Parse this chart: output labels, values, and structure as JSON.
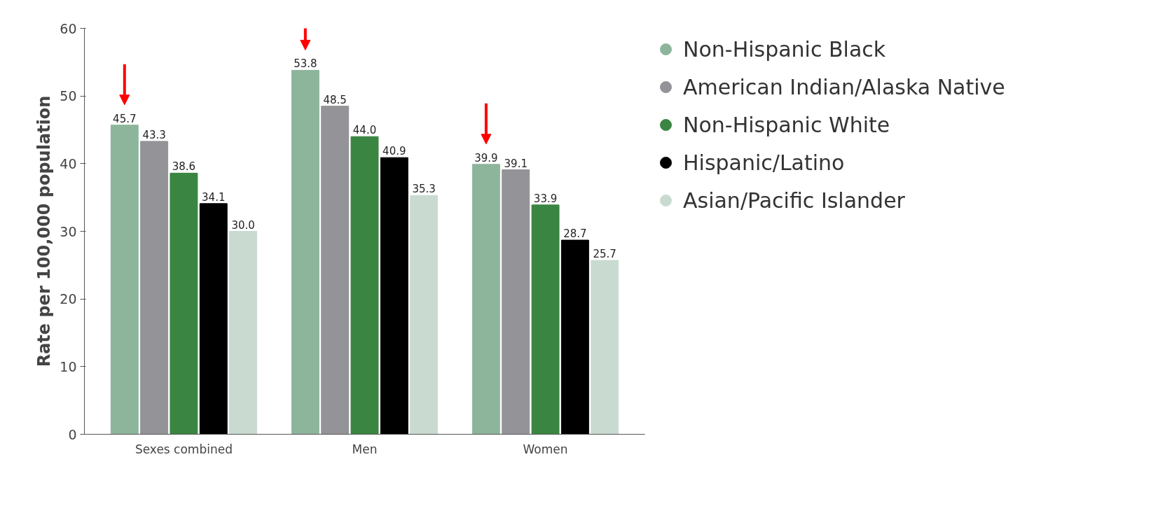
{
  "chart_data": {
    "type": "bar",
    "ylabel": "Rate per 100,000 population",
    "categories": [
      "Sexes combined",
      "Men",
      "Women"
    ],
    "series": [
      {
        "name": "Non-Hispanic Black",
        "color": "#8db59c",
        "values": [
          45.7,
          53.8,
          39.9
        ],
        "value_labels": [
          "45.7",
          "53.8",
          "39.9"
        ]
      },
      {
        "name": "American Indian/Alaska Native",
        "color": "#939398",
        "values": [
          43.3,
          48.5,
          39.1
        ],
        "value_labels": [
          "43.3",
          "48.5",
          "39.1"
        ]
      },
      {
        "name": "Non-Hispanic White",
        "color": "#3a8541",
        "values": [
          38.6,
          44.0,
          33.9
        ],
        "value_labels": [
          "38.6",
          "44.0",
          "33.9"
        ]
      },
      {
        "name": "Hispanic/Latino",
        "color": "#000000",
        "values": [
          34.1,
          40.9,
          28.7
        ],
        "value_labels": [
          "34.1",
          "40.9",
          "28.7"
        ]
      },
      {
        "name": "Asian/Pacific Islander",
        "color": "#c9dbd1",
        "values": [
          30.0,
          35.3,
          25.7
        ],
        "value_labels": [
          "30.0",
          "35.3",
          "25.7"
        ]
      }
    ],
    "ylim": [
      0,
      60
    ],
    "yticks": [
      0,
      10,
      20,
      30,
      40,
      50,
      60
    ],
    "grid": false,
    "legend": "right"
  }
}
